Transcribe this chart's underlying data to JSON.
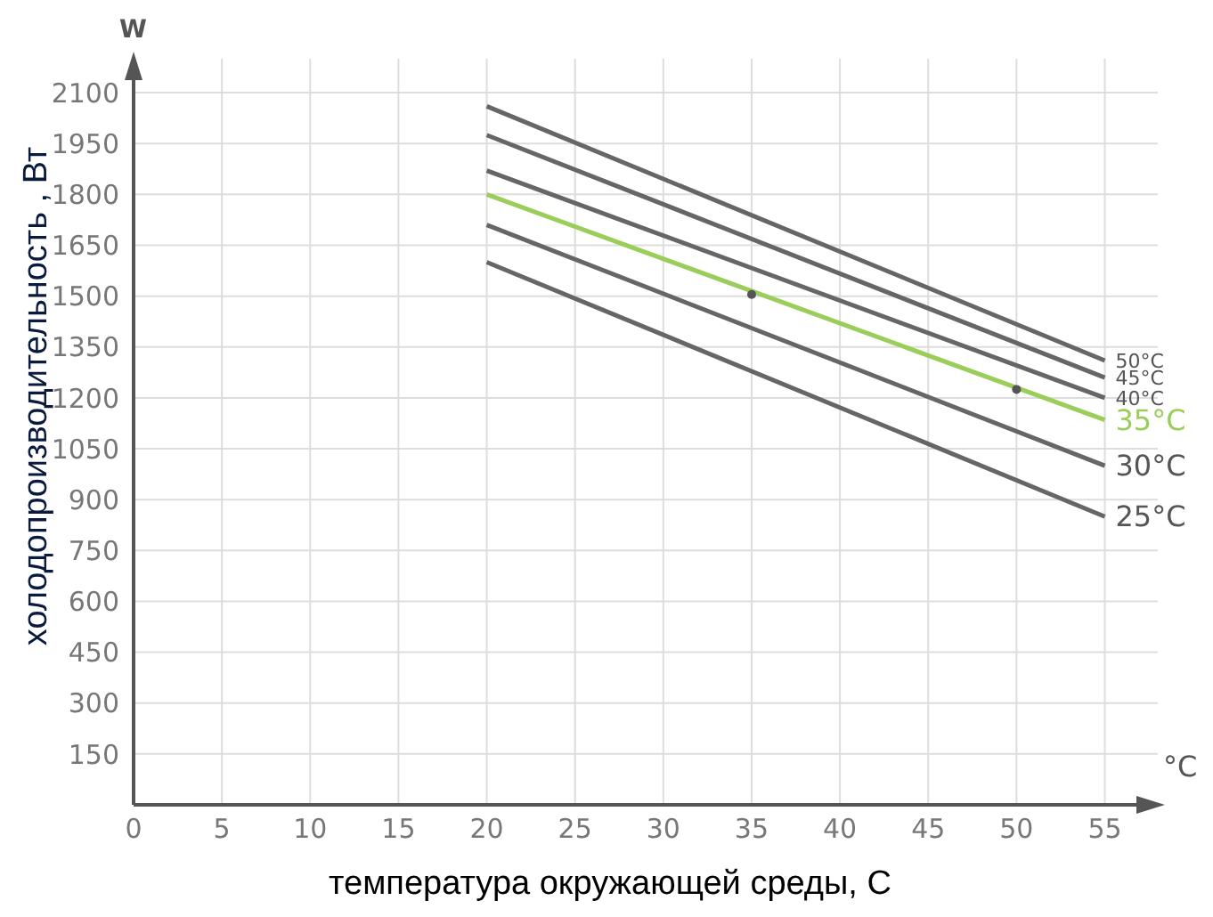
{
  "chart_data": {
    "type": "line",
    "xlabel": "температура окружающей среды, С",
    "ylabel": "холодопроизводительность , Вт",
    "annotations": [
      "W",
      "°C"
    ],
    "xlim": [
      0,
      58
    ],
    "xticks": [
      0,
      5,
      10,
      15,
      20,
      25,
      30,
      35,
      40,
      45,
      50,
      55
    ],
    "ylim": [
      0,
      2200
    ],
    "yticks": [
      150,
      300,
      450,
      600,
      750,
      900,
      1050,
      1200,
      1350,
      1500,
      1650,
      1800,
      1950,
      2100
    ],
    "grid": true,
    "marker": "none",
    "line_style": "solid",
    "series": [
      {
        "name": "50°C",
        "color": "#666666",
        "x": [
          20,
          55
        ],
        "values": [
          2060,
          1310
        ]
      },
      {
        "name": "45°C",
        "color": "#666666",
        "x": [
          20,
          55
        ],
        "values": [
          1975,
          1260
        ]
      },
      {
        "name": "40°C",
        "color": "#666666",
        "x": [
          20,
          55
        ],
        "values": [
          1870,
          1200
        ]
      },
      {
        "name": "35°C",
        "color": "#9acd5a",
        "x": [
          20,
          55
        ],
        "values": [
          1800,
          1135
        ]
      },
      {
        "name": "30°C",
        "color": "#666666",
        "x": [
          20,
          55
        ],
        "values": [
          1710,
          1000
        ]
      },
      {
        "name": "25°C",
        "color": "#666666",
        "x": [
          20,
          55
        ],
        "values": [
          1600,
          850
        ]
      },
      {
        "type": "scatter",
        "color": "#555555",
        "marker": "circle",
        "x": [
          35,
          50
        ],
        "values": [
          1505,
          1225
        ]
      }
    ]
  }
}
